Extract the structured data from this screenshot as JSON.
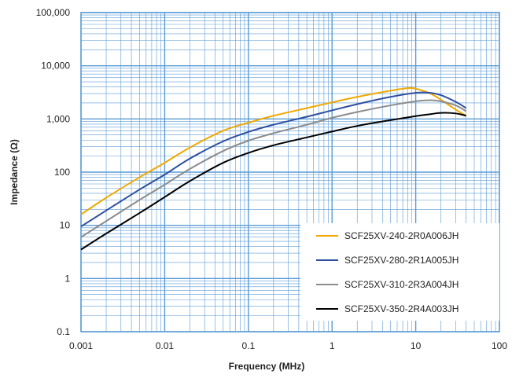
{
  "chart_data": {
    "type": "line",
    "title": "",
    "xlabel": "Frequency (MHz)",
    "ylabel": "Impedance (Ω)",
    "xscale": "log",
    "yscale": "log",
    "xlim": [
      0.001,
      100
    ],
    "ylim": [
      0.1,
      100000
    ],
    "x_ticks": [
      {
        "value": 0.001,
        "label": "0.001"
      },
      {
        "value": 0.01,
        "label": "0.01"
      },
      {
        "value": 0.1,
        "label": "0.1"
      },
      {
        "value": 1,
        "label": "1"
      },
      {
        "value": 10,
        "label": "10"
      },
      {
        "value": 100,
        "label": "100"
      }
    ],
    "y_ticks": [
      {
        "value": 0.1,
        "label": "0.1"
      },
      {
        "value": 1,
        "label": "1"
      },
      {
        "value": 10,
        "label": "10"
      },
      {
        "value": 100,
        "label": "100"
      },
      {
        "value": 1000,
        "label": "1,000"
      },
      {
        "value": 10000,
        "label": "10,000"
      },
      {
        "value": 100000,
        "label": "100,000"
      }
    ],
    "grid": true,
    "legend_position": "bottom-right",
    "colors": {
      "grid": "#5b9bd5",
      "plot_border": "#5b9bd5"
    },
    "series": [
      {
        "name": "SCF25XV-240-2R0A006JH",
        "color": "#f0a800",
        "x": [
          0.001,
          0.002,
          0.005,
          0.01,
          0.02,
          0.05,
          0.1,
          0.2,
          0.5,
          1,
          2,
          5,
          8,
          10,
          15,
          20,
          30,
          40
        ],
        "y": [
          16,
          33,
          80,
          150,
          290,
          600,
          850,
          1150,
          1600,
          2050,
          2600,
          3400,
          3800,
          3700,
          3000,
          2300,
          1500,
          1150
        ]
      },
      {
        "name": "SCF25XV-280-2R1A005JH",
        "color": "#2e4fa0",
        "x": [
          0.001,
          0.002,
          0.005,
          0.01,
          0.02,
          0.05,
          0.1,
          0.2,
          0.5,
          1,
          2,
          5,
          10,
          15,
          20,
          30,
          40
        ],
        "y": [
          9.5,
          19,
          47,
          90,
          180,
          380,
          570,
          780,
          1100,
          1450,
          1900,
          2600,
          3100,
          3100,
          2800,
          2100,
          1600
        ]
      },
      {
        "name": "SCF25XV-310-2R3A004JH",
        "color": "#8c8c8c",
        "x": [
          0.001,
          0.002,
          0.005,
          0.01,
          0.02,
          0.05,
          0.1,
          0.2,
          0.5,
          1,
          2,
          5,
          10,
          15,
          20,
          30,
          40
        ],
        "y": [
          6,
          12,
          30,
          58,
          115,
          250,
          390,
          540,
          780,
          1050,
          1350,
          1800,
          2150,
          2250,
          2150,
          1800,
          1400
        ]
      },
      {
        "name": "SCF25XV-350-2R4A003JH",
        "color": "#000000",
        "x": [
          0.001,
          0.002,
          0.005,
          0.01,
          0.02,
          0.05,
          0.1,
          0.2,
          0.5,
          1,
          2,
          5,
          10,
          15,
          20,
          30,
          40
        ],
        "y": [
          3.5,
          7,
          17,
          34,
          68,
          150,
          230,
          320,
          450,
          580,
          740,
          950,
          1130,
          1230,
          1300,
          1270,
          1150
        ]
      }
    ]
  }
}
